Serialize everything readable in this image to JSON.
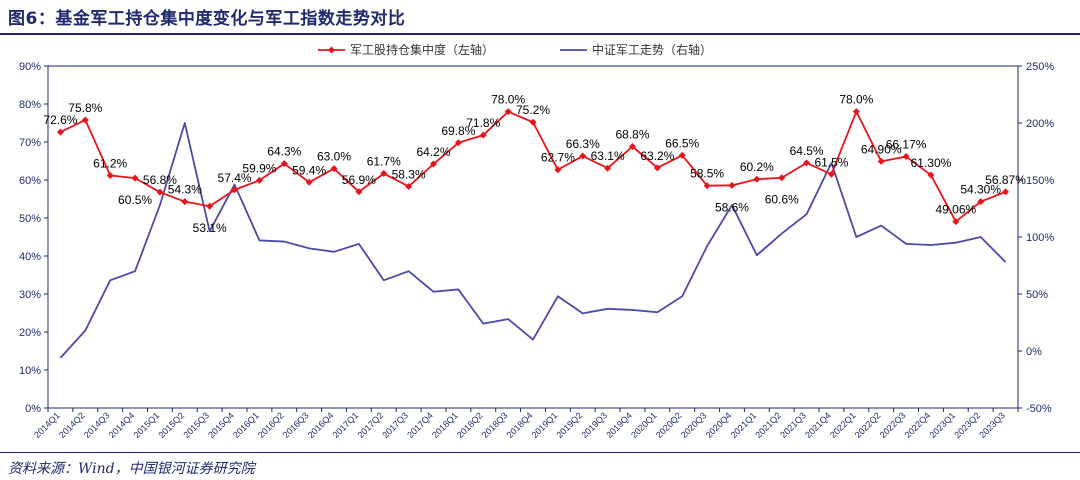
{
  "header": {
    "title": "图6：基金军工持仓集中度变化与军工指数走势对比"
  },
  "footer": {
    "source": "资料来源：Wind，中国银河证券研究院"
  },
  "chart_data": {
    "type": "line",
    "legend_position": "top-center",
    "grid": false,
    "categories": [
      "2014Q1",
      "2014Q2",
      "2014Q3",
      "2014Q4",
      "2015Q1",
      "2015Q2",
      "2015Q3",
      "2015Q4",
      "2016Q1",
      "2016Q2",
      "2016Q3",
      "2016Q4",
      "2017Q1",
      "2017Q2",
      "2017Q3",
      "2017Q4",
      "2018Q1",
      "2018Q2",
      "2018Q3",
      "2018Q4",
      "2019Q1",
      "2019Q2",
      "2019Q3",
      "2019Q4",
      "2020Q1",
      "2020Q2",
      "2020Q3",
      "2020Q4",
      "2021Q1",
      "2021Q2",
      "2021Q3",
      "2021Q4",
      "2022Q1",
      "2022Q2",
      "2022Q3",
      "2022Q4",
      "2023Q1",
      "2023Q2",
      "2023Q3"
    ],
    "left_axis": {
      "ylim": [
        0,
        90
      ],
      "ticks": [
        "0%",
        "10%",
        "20%",
        "30%",
        "40%",
        "50%",
        "60%",
        "70%",
        "80%",
        "90%"
      ]
    },
    "right_axis": {
      "ylim": [
        -50,
        250
      ],
      "ticks": [
        "-50%",
        "0%",
        "50%",
        "100%",
        "150%",
        "200%",
        "250%"
      ]
    },
    "series": [
      {
        "name": "军工股持仓集中度（左轴）",
        "axis": "left",
        "color": "#e8141b",
        "marker": "diamond",
        "values": [
          72.6,
          75.8,
          61.2,
          60.5,
          56.8,
          54.3,
          53.1,
          57.4,
          59.9,
          64.3,
          59.4,
          63.0,
          56.9,
          61.7,
          58.3,
          64.2,
          69.8,
          71.8,
          78.0,
          75.2,
          62.7,
          66.3,
          63.1,
          68.8,
          63.2,
          66.5,
          58.5,
          58.6,
          60.2,
          60.6,
          64.5,
          61.5,
          78.0,
          64.9,
          66.17,
          61.3,
          49.06,
          54.3,
          56.87
        ],
        "labels": [
          "72.6%",
          "75.8%",
          "61.2%",
          "60.5%",
          "56.8%",
          "54.3%",
          "53.1%",
          "57.4%",
          "59.9%",
          "64.3%",
          "59.4%",
          "63.0%",
          "56.9%",
          "61.7%",
          "58.3%",
          "64.2%",
          "69.8%",
          "71.8%",
          "78.0%",
          "75.2%",
          "62.7%",
          "66.3%",
          "63.1%",
          "68.8%",
          "63.2%",
          "66.5%",
          "58.5%",
          "58.6%",
          "60.2%",
          "60.6%",
          "64.5%",
          "61.5%",
          "78.0%",
          "64.90%",
          "66.17%",
          "61.30%",
          "49.06%",
          "54.30%",
          "56.87%"
        ],
        "label_pos": [
          "above",
          "above",
          "above",
          "below",
          "above",
          "above",
          "below",
          "above",
          "above",
          "above",
          "above",
          "above",
          "above",
          "above",
          "above",
          "above",
          "above",
          "above",
          "above",
          "above",
          "above",
          "above",
          "above",
          "above",
          "above",
          "above",
          "above",
          "below",
          "above",
          "below",
          "above",
          "above",
          "above",
          "above",
          "above",
          "above",
          "above",
          "above",
          "above"
        ]
      },
      {
        "name": "中证军工走势（右轴）",
        "axis": "right",
        "color": "#4b4aa8",
        "marker": "none",
        "values": [
          -6,
          18,
          62,
          70,
          128,
          200,
          105,
          146,
          97,
          96,
          90,
          87,
          94,
          62,
          70,
          52,
          54,
          24,
          28,
          10,
          48,
          33,
          37,
          36,
          34,
          48,
          92,
          128,
          84,
          103,
          120,
          165,
          100,
          110,
          94,
          93,
          95,
          100,
          78
        ]
      }
    ]
  }
}
